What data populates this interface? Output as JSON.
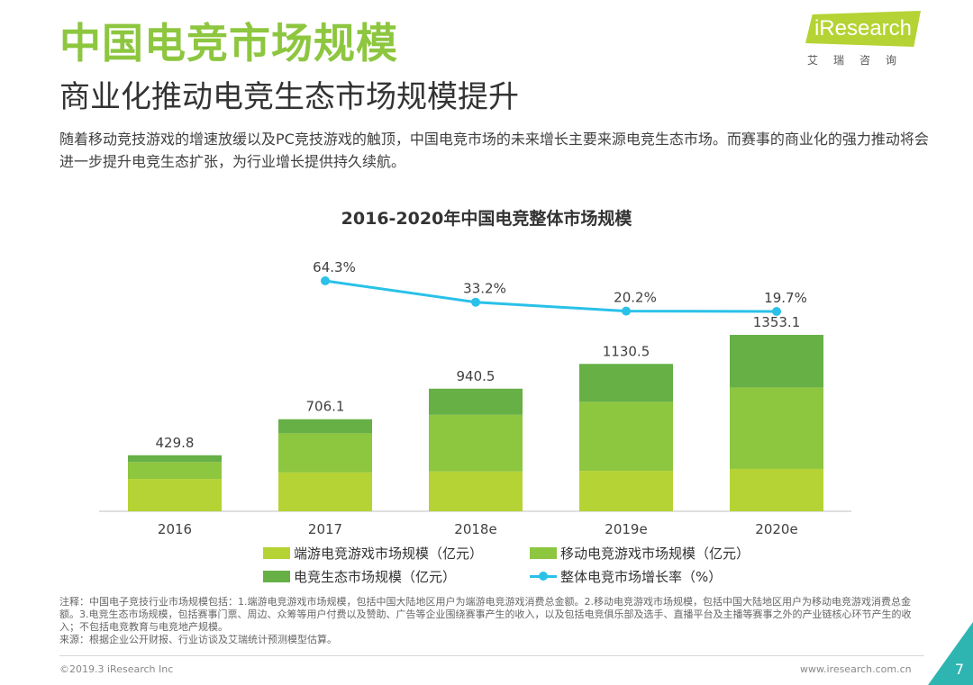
{
  "header": {
    "title": "中国电竞市场规模",
    "subtitle": "商业化推动电竞生态市场规模提升",
    "intro": "随着移动竞技游戏的增速放缓以及PC竞技游戏的触顶，中国电竞市场的未来增长主要来源电竞生态市场。而赛事的商业化的强力推动将会进一步提升电竞生态扩张，为行业增长提供持久续航。"
  },
  "logo": {
    "brand": "iResearch",
    "cn": "艾瑞咨询"
  },
  "colors": {
    "pc": "#b5d334",
    "mobile": "#8dc63f",
    "ecosystem": "#66b046",
    "growth_line": "#29c1e8",
    "title_green": "#8dc63f"
  },
  "chart_data": {
    "type": "bar",
    "stacked": true,
    "title": "2016-2020年中国电竞整体市场规模",
    "categories": [
      "2016",
      "2017",
      "2018e",
      "2019e",
      "2020e"
    ],
    "series": [
      {
        "name": "端游电竞游戏市场规模（亿元）",
        "values": [
          248.0,
          298.0,
          305.0,
          310.0,
          325.0
        ]
      },
      {
        "name": "移动电竞游戏市场规模（亿元）",
        "values": [
          130.0,
          300.0,
          435.0,
          530.0,
          625.0
        ]
      },
      {
        "name": "电竞生态市场规模（亿元）",
        "values": [
          51.8,
          108.1,
          200.5,
          290.5,
          403.1
        ]
      }
    ],
    "totals": [
      429.8,
      706.1,
      940.5,
      1130.5,
      1353.1
    ],
    "total_labels": [
      "429.8",
      "706.1",
      "940.5",
      "1130.5",
      "1353.1"
    ],
    "growth_rate": {
      "name": "整体电竞市场增长率（%）",
      "x": [
        "2017",
        "2018e",
        "2019e",
        "2020e"
      ],
      "values": [
        64.3,
        33.2,
        20.2,
        19.7
      ],
      "labels": [
        "64.3%",
        "33.2%",
        "20.2%",
        "19.7%"
      ]
    },
    "ylim": [
      0,
      1450
    ],
    "legend_position": "bottom"
  },
  "notes": {
    "note": "注释：中国电子竞技行业市场规模包括：1.端游电竞游戏市场规模，包括中国大陆地区用户为端游电竞游戏消费总金额。2.移动电竞游戏市场规模，包括中国大陆地区用户为移动电竞游戏消费总金额。3.电竞生态市场规模，包括赛事门票、周边、众筹等用户付费以及赞助、广告等企业围绕赛事产生的收入，以及包括电竞俱乐部及选手、直播平台及主播等赛事之外的产业链核心环节产生的收入；不包括电竞教育与电竞地产规模。",
    "source": "来源：根据企业公开财报、行业访谈及艾瑞统计预测模型估算。"
  },
  "footer": {
    "copyright": "©2019.3 iResearch Inc",
    "website": "www.iresearch.com.cn",
    "page": "7"
  }
}
